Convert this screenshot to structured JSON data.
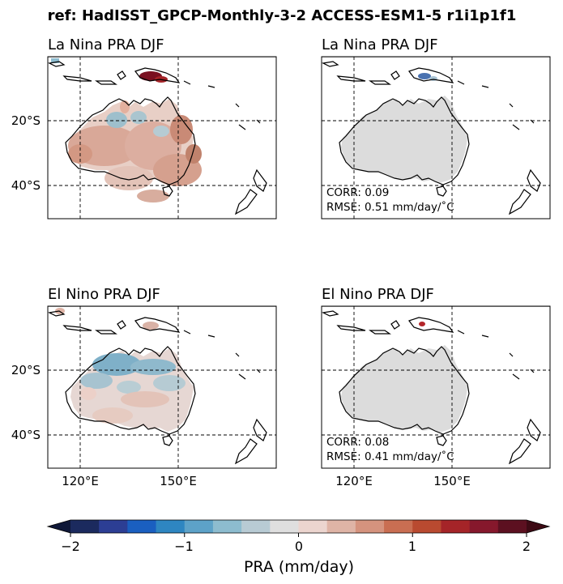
{
  "figure": {
    "suptitle": "ref: HadISST_GPCP-Monthly-3-2 ACCESS-ESM1-5 r1i1p1f1"
  },
  "chart_data": {
    "type": "heatmap",
    "colormap": "diverging blue-white-red (RdBu_r)",
    "lat_ticks": [
      "20°S",
      "40°S"
    ],
    "lon_ticks": [
      "120°E",
      "150°E"
    ],
    "gridlines": "dashed at 20°S, 40°S, 120°E, 150°E",
    "panels": [
      {
        "title": "La Nina PRA DJF",
        "source": "reference",
        "description": "positive anomalies over most of Australia, negative over north-central Australia, strong positive over New Guinea"
      },
      {
        "title": "La Nina PRA DJF",
        "source": "model",
        "corr_label": "CORR: 0.09",
        "rmse_label": "RMSE: 0.51 mm/day/ $^\\circ$C"
      },
      {
        "title": "El Nino PRA DJF",
        "source": "reference",
        "description": "negative anomalies over northern Australia, weak positive over the south"
      },
      {
        "title": "El Nino PRA DJF",
        "source": "model",
        "corr_label": "CORR: 0.08",
        "rmse_label": "RMSE: 0.41 mm/day/ $^\\circ$C"
      }
    ],
    "colorbar": {
      "label": "PRA (mm/day)",
      "ticks": [
        "−2",
        "−1",
        "0",
        "1",
        "2"
      ],
      "range": [
        -2,
        2
      ],
      "colors": [
        "#1b2a5e",
        "#2c3e94",
        "#1a5fc0",
        "#2e86c1",
        "#5da2c8",
        "#8dbccf",
        "#b8cbd4",
        "#dfdfdf",
        "#ecd5cf",
        "#dfb4a6",
        "#d5937e",
        "#c96e52",
        "#b94a30",
        "#a52428",
        "#86182c",
        "#5c1020"
      ]
    }
  }
}
